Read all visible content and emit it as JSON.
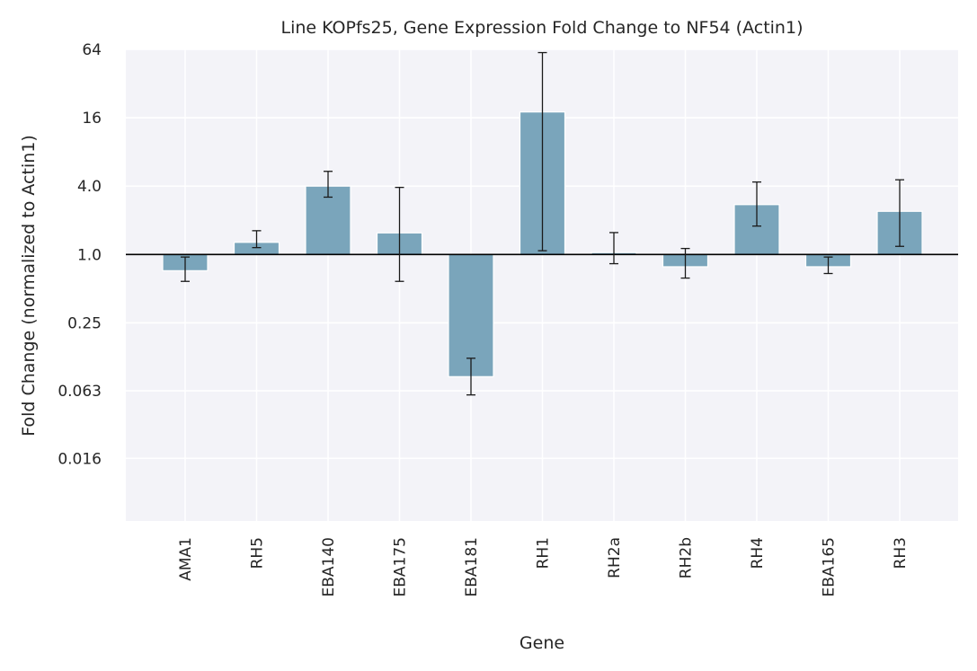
{
  "chart_data": {
    "type": "bar",
    "title": "Line KOPfs25, Gene Expression Fold Change to NF54 (Actin1)",
    "xlabel": "Gene",
    "ylabel": "Fold Change (normalized to Actin1)",
    "yscale": "log2",
    "ylim": [
      0.0045,
      64
    ],
    "yticks": [
      0.016,
      0.063,
      0.25,
      1,
      4,
      16,
      64
    ],
    "ytick_labels": [
      "0.016",
      "0.063",
      "0.25",
      "1.0",
      "4.0",
      "16",
      "64"
    ],
    "baseline": 1,
    "grid": true,
    "categories": [
      "AMA1",
      "RH5",
      "EBA140",
      "EBA175",
      "EBA181",
      "RH1",
      "RH2a",
      "RH2b",
      "RH4",
      "EBA165",
      "RH3"
    ],
    "values": [
      0.72,
      1.28,
      4.0,
      1.55,
      0.084,
      18.0,
      1.04,
      0.78,
      2.75,
      0.78,
      2.4
    ],
    "error_low": [
      0.58,
      1.15,
      3.2,
      0.58,
      0.058,
      1.08,
      0.83,
      0.62,
      1.78,
      0.68,
      1.18
    ],
    "error_high": [
      0.95,
      1.62,
      5.4,
      3.9,
      0.122,
      60.0,
      1.56,
      1.13,
      4.35,
      0.95,
      4.55
    ],
    "colors": {
      "bar": "#7aa5bb",
      "plot_background": "#f3f3f8",
      "grid": "#ffffff",
      "error": "#1a1a1a",
      "baseline": "#000000"
    }
  }
}
